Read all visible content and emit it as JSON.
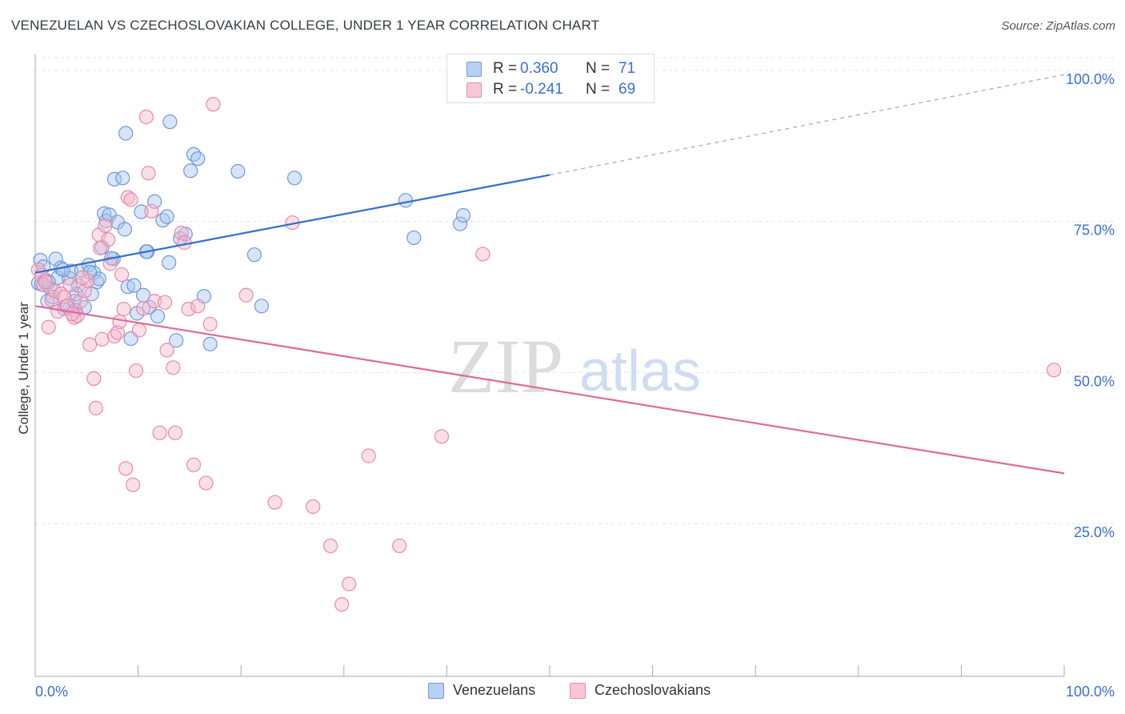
{
  "title": "VENEZUELAN VS CZECHOSLOVAKIAN COLLEGE, UNDER 1 YEAR CORRELATION CHART",
  "source": "Source: ZipAtlas.com",
  "watermark": {
    "zip": "ZIP",
    "atlas": "atlas"
  },
  "colors": {
    "blue_fill": "#a9c6ef",
    "blue_stroke": "#6f9ad9",
    "blue_line": "#2f6fd0",
    "pink_fill": "#f4b7cb",
    "pink_stroke": "#e88aa9",
    "pink_line": "#e0689a",
    "tick_label": "#3a6fd4",
    "grid": "#e3e3e3"
  },
  "legend": {
    "rows": [
      {
        "r_label": "R =",
        "r_value": "0.360",
        "n_label": "N =",
        "n_value": "71",
        "series": "Venezuelans"
      },
      {
        "r_label": "R =",
        "r_value": "-0.241",
        "n_label": "N =",
        "n_value": "69",
        "series": "Czechoslovakians"
      }
    ]
  },
  "bottom_legend": [
    "Venezuelans",
    "Czechoslovakians"
  ],
  "chart_data": {
    "type": "scatter",
    "title": "VENEZUELAN VS CZECHOSLOVAKIAN COLLEGE, UNDER 1 YEAR CORRELATION CHART",
    "xlabel": "",
    "ylabel": "College, Under 1 year",
    "xlim": [
      0,
      100
    ],
    "ylim": [
      0,
      103
    ],
    "x_tick_labels": [
      "0.0%",
      "100.0%"
    ],
    "y_ticks": [
      25,
      50,
      75,
      100
    ],
    "y_tick_labels": [
      "25.0%",
      "50.0%",
      "75.0%",
      "100.0%"
    ],
    "grid": true,
    "legend_position": "top-center",
    "series": [
      {
        "name": "Venezuelans",
        "color": "#a9c6ef",
        "R": 0.36,
        "N": 71,
        "trend": {
          "x0": 0,
          "y0": 66.5,
          "x1": 50,
          "y1": 82.7,
          "dashed_to_x": 100,
          "dashed_to_y": 99.3
        },
        "points": [
          [
            0.3,
            64.8
          ],
          [
            0.5,
            68.6
          ],
          [
            0.8,
            67.5
          ],
          [
            1.0,
            65.3
          ],
          [
            1.2,
            61.8
          ],
          [
            1.5,
            63.9
          ],
          [
            1.7,
            62.5
          ],
          [
            2.0,
            68.8
          ],
          [
            2.2,
            65.7
          ],
          [
            2.5,
            67.3
          ],
          [
            2.8,
            60.6
          ],
          [
            3.0,
            61.0
          ],
          [
            3.3,
            65.6
          ],
          [
            3.5,
            66.8
          ],
          [
            3.8,
            61.8
          ],
          [
            4.0,
            63.0
          ],
          [
            4.2,
            64.4
          ],
          [
            4.5,
            66.9
          ],
          [
            4.8,
            60.8
          ],
          [
            5.2,
            67.8
          ],
          [
            5.5,
            63.0
          ],
          [
            5.7,
            66.5
          ],
          [
            6.0,
            65.0
          ],
          [
            6.2,
            65.5
          ],
          [
            6.5,
            70.7
          ],
          [
            6.7,
            76.3
          ],
          [
            6.9,
            75.1
          ],
          [
            7.2,
            76.1
          ],
          [
            7.6,
            68.8
          ],
          [
            8.0,
            74.9
          ],
          [
            7.7,
            82.0
          ],
          [
            8.5,
            82.2
          ],
          [
            8.8,
            89.6
          ],
          [
            8.7,
            73.7
          ],
          [
            9.0,
            64.2
          ],
          [
            9.3,
            55.6
          ],
          [
            9.9,
            59.8
          ],
          [
            10.3,
            76.6
          ],
          [
            10.5,
            62.8
          ],
          [
            10.9,
            70.0
          ],
          [
            11.1,
            60.8
          ],
          [
            11.6,
            78.3
          ],
          [
            11.9,
            59.3
          ],
          [
            12.4,
            75.2
          ],
          [
            12.8,
            75.8
          ],
          [
            13.0,
            68.2
          ],
          [
            13.1,
            91.5
          ],
          [
            13.7,
            55.3
          ],
          [
            14.1,
            72.2
          ],
          [
            14.6,
            72.9
          ],
          [
            15.1,
            83.4
          ],
          [
            15.4,
            86.1
          ],
          [
            15.8,
            85.4
          ],
          [
            16.4,
            62.6
          ],
          [
            17.0,
            54.7
          ],
          [
            19.7,
            83.3
          ],
          [
            21.3,
            69.5
          ],
          [
            22.0,
            61.0
          ],
          [
            25.2,
            82.2
          ],
          [
            36.0,
            78.5
          ],
          [
            36.8,
            72.3
          ],
          [
            41.3,
            74.6
          ],
          [
            41.6,
            76.0
          ],
          [
            0.6,
            64.6
          ],
          [
            1.3,
            65.0
          ],
          [
            2.7,
            67.0
          ],
          [
            3.9,
            60.3
          ],
          [
            5.3,
            66.6
          ],
          [
            7.4,
            68.9
          ],
          [
            9.6,
            64.4
          ],
          [
            10.8,
            70.0
          ]
        ]
      },
      {
        "name": "Czechoslovakians",
        "color": "#f4b7cb",
        "R": -0.241,
        "N": 69,
        "trend": {
          "x0": 0,
          "y0": 61.0,
          "x1": 100,
          "y1": 33.3
        },
        "points": [
          [
            0.3,
            67.0
          ],
          [
            0.6,
            66.1
          ],
          [
            0.8,
            64.5
          ],
          [
            1.0,
            65.0
          ],
          [
            1.3,
            57.5
          ],
          [
            1.6,
            62.0
          ],
          [
            1.9,
            63.5
          ],
          [
            2.2,
            60.1
          ],
          [
            2.5,
            63.0
          ],
          [
            2.8,
            62.5
          ],
          [
            3.1,
            61.0
          ],
          [
            3.4,
            64.5
          ],
          [
            3.8,
            59.1
          ],
          [
            4.1,
            59.4
          ],
          [
            4.4,
            61.8
          ],
          [
            4.8,
            63.5
          ],
          [
            5.1,
            65.2
          ],
          [
            5.3,
            54.6
          ],
          [
            5.7,
            49.0
          ],
          [
            5.9,
            44.1
          ],
          [
            6.2,
            72.8
          ],
          [
            6.5,
            55.5
          ],
          [
            6.8,
            74.3
          ],
          [
            7.1,
            72.0
          ],
          [
            7.3,
            68.0
          ],
          [
            7.7,
            56.0
          ],
          [
            8.0,
            56.6
          ],
          [
            8.4,
            66.2
          ],
          [
            8.6,
            60.5
          ],
          [
            8.8,
            34.1
          ],
          [
            9.0,
            79.0
          ],
          [
            9.3,
            78.6
          ],
          [
            9.5,
            31.4
          ],
          [
            9.8,
            50.3
          ],
          [
            10.1,
            57.0
          ],
          [
            10.5,
            60.6
          ],
          [
            10.8,
            92.3
          ],
          [
            11.0,
            83.0
          ],
          [
            11.3,
            76.7
          ],
          [
            11.6,
            61.8
          ],
          [
            12.1,
            40.0
          ],
          [
            12.8,
            53.7
          ],
          [
            13.4,
            50.8
          ],
          [
            13.6,
            40.0
          ],
          [
            14.2,
            73.1
          ],
          [
            14.5,
            71.5
          ],
          [
            14.9,
            60.5
          ],
          [
            15.4,
            34.7
          ],
          [
            15.8,
            61.0
          ],
          [
            16.6,
            31.7
          ],
          [
            17.0,
            58.0
          ],
          [
            17.3,
            94.4
          ],
          [
            20.5,
            62.8
          ],
          [
            23.3,
            28.5
          ],
          [
            25.0,
            74.8
          ],
          [
            27.0,
            27.8
          ],
          [
            28.7,
            21.3
          ],
          [
            29.8,
            11.6
          ],
          [
            30.5,
            15.0
          ],
          [
            32.4,
            36.2
          ],
          [
            35.4,
            21.3
          ],
          [
            39.5,
            39.4
          ],
          [
            43.5,
            69.6
          ],
          [
            99.0,
            50.4
          ],
          [
            3.6,
            59.7
          ],
          [
            6.3,
            70.6
          ],
          [
            8.2,
            58.4
          ],
          [
            12.6,
            61.6
          ],
          [
            4.6,
            65.7
          ]
        ]
      }
    ]
  }
}
